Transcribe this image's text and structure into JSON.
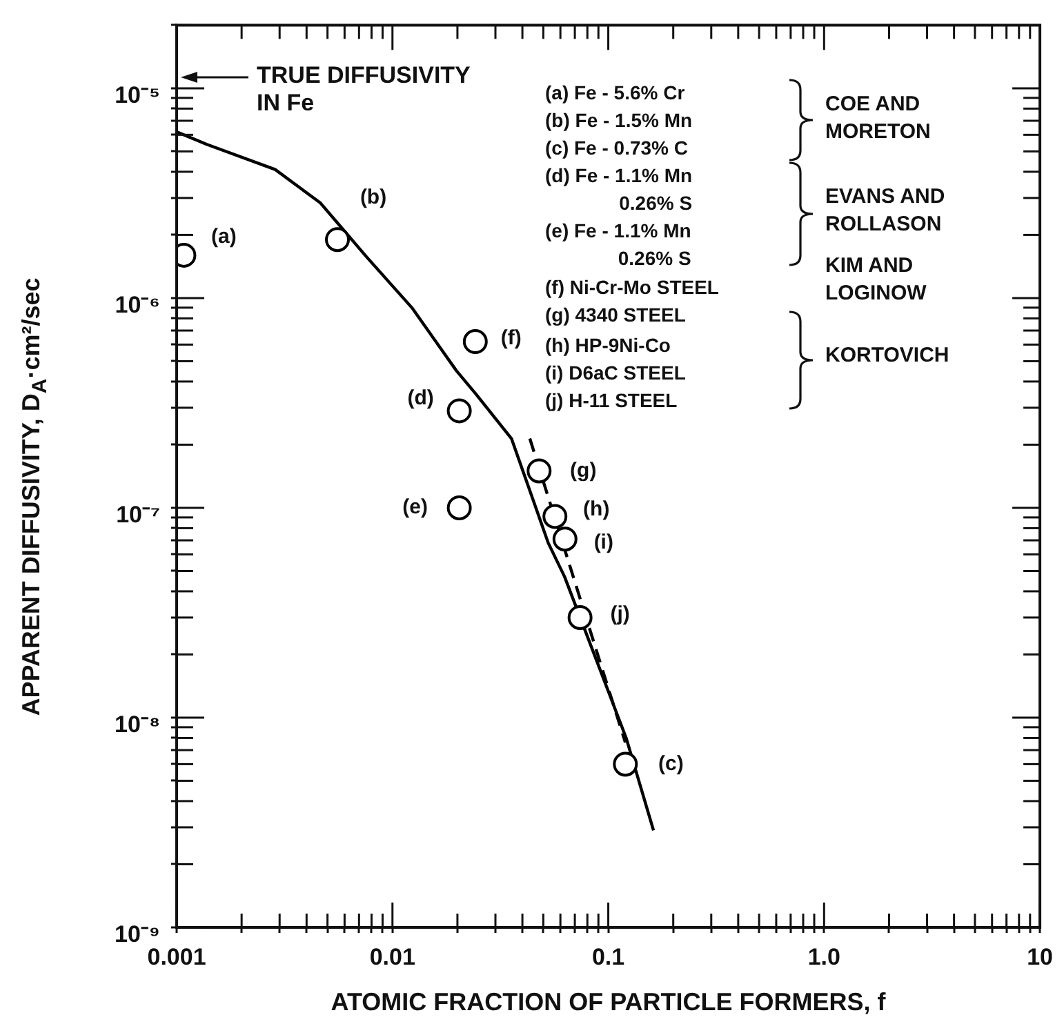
{
  "chart_data": {
    "type": "scatter",
    "xlabel": "ATOMIC FRACTION OF PARTICLE FORMERS, f",
    "ylabel": "APPARENT DIFFUSIVITY, D$_{A}$·cm²/sec",
    "log": "xy",
    "grid": false,
    "legend": false,
    "xlim": [
      0.001,
      10
    ],
    "ylim": [
      1e-09,
      2e-05
    ],
    "xticks": [
      0.001,
      {
        "value": 0.002,
        "label": null
      },
      {
        "value": 0.003,
        "label": null
      },
      {
        "value": 0.004,
        "label": null
      },
      {
        "value": 0.005,
        "label": null
      },
      {
        "value": 0.006,
        "label": null
      },
      {
        "value": 0.007,
        "label": null
      },
      {
        "value": 0.008,
        "label": null
      },
      {
        "value": 0.009,
        "label": null
      },
      0.01,
      {
        "value": 0.02,
        "label": null
      },
      {
        "value": 0.03,
        "label": null
      },
      {
        "value": 0.04,
        "label": null
      },
      {
        "value": 0.05,
        "label": null
      },
      {
        "value": 0.06,
        "label": null
      },
      {
        "value": 0.07,
        "label": null
      },
      {
        "value": 0.08,
        "label": null
      },
      {
        "value": 0.09,
        "label": null
      },
      0.1,
      {
        "value": 0.2,
        "label": null
      },
      {
        "value": 0.3,
        "label": null
      },
      {
        "value": 0.4,
        "label": null
      },
      {
        "value": 0.5,
        "label": null
      },
      {
        "value": 0.6,
        "label": null
      },
      {
        "value": 0.7,
        "label": null
      },
      {
        "value": 0.8,
        "label": null
      },
      {
        "value": 0.9,
        "label": null
      },
      {
        "value": 1,
        "label": "1.0"
      },
      {
        "value": 2,
        "label": null
      },
      {
        "value": 3,
        "label": null
      },
      {
        "value": 4,
        "label": null
      },
      {
        "value": 5,
        "label": null
      },
      {
        "value": 6,
        "label": null
      },
      {
        "value": 7,
        "label": null
      },
      {
        "value": 8,
        "label": null
      },
      {
        "value": 9,
        "label": null
      },
      10
    ],
    "yticks": [
      {
        "value": 1e-09,
        "label": "10⁻⁹"
      },
      {
        "value": 2e-09,
        "label": null
      },
      {
        "value": 3e-09,
        "label": null
      },
      {
        "value": 4e-09,
        "label": null
      },
      {
        "value": 5e-09,
        "label": null
      },
      {
        "value": 6e-09,
        "label": null
      },
      {
        "value": 7e-09,
        "label": null
      },
      {
        "value": 8e-09,
        "label": null
      },
      {
        "value": 9e-09,
        "label": null
      },
      {
        "value": 1e-08,
        "label": "10⁻⁸"
      },
      {
        "value": 2e-08,
        "label": null
      },
      {
        "value": 3e-08,
        "label": null
      },
      {
        "value": 4e-08,
        "label": null
      },
      {
        "value": 5e-08,
        "label": null
      },
      {
        "value": 6e-08,
        "label": null
      },
      {
        "value": 7e-08,
        "label": null
      },
      {
        "value": 8e-08,
        "label": null
      },
      {
        "value": 9e-08,
        "label": null
      },
      {
        "value": 1e-07,
        "label": "10⁻⁷"
      },
      {
        "value": 2e-07,
        "label": null
      },
      {
        "value": 3e-07,
        "label": null
      },
      {
        "value": 4e-07,
        "label": null
      },
      {
        "value": 5e-07,
        "label": null
      },
      {
        "value": 6e-07,
        "label": null
      },
      {
        "value": 7e-07,
        "label": null
      },
      {
        "value": 8e-07,
        "label": null
      },
      {
        "value": 9e-07,
        "label": null
      },
      {
        "value": 1e-06,
        "label": "10⁻⁶"
      },
      {
        "value": 2e-06,
        "label": null
      },
      {
        "value": 3e-06,
        "label": null
      },
      {
        "value": 4e-06,
        "label": null
      },
      {
        "value": 5e-06,
        "label": null
      },
      {
        "value": 6e-06,
        "label": null
      },
      {
        "value": 7e-06,
        "label": null
      },
      {
        "value": 8e-06,
        "label": null
      },
      {
        "value": 9e-06,
        "label": null
      },
      {
        "value": 1e-05,
        "label": "10⁻⁵"
      },
      {
        "value": 2e-05,
        "label": null
      }
    ],
    "series": [
      {
        "marker": "circle",
        "color": "#000000",
        "x": [
          0.00108,
          0.00556,
          0.12,
          0.0204,
          0.0204,
          0.0242,
          0.0478,
          0.0566,
          0.063,
          0.074
        ],
        "values": [
          1.6e-06,
          1.9e-06,
          6e-09,
          2.9e-07,
          1e-07,
          6.2e-07,
          1.5e-07,
          9.1e-08,
          7.1e-08,
          3e-08
        ],
        "value_labels": [
          "(a)",
          "(b)",
          "(c)",
          "(d)",
          "(e)",
          "(f)",
          "(g)",
          "(h)",
          "(i)",
          "(j)"
        ]
      },
      {
        "type": "line",
        "marker": "none",
        "line_style": "solid",
        "color": "#000000",
        "x": [
          0.001,
          0.00138,
          0.00286,
          0.00462,
          0.00759,
          0.0123,
          0.0198,
          0.0243,
          0.0356,
          0.0527,
          0.0627,
          0.121,
          0.162
        ],
        "values": [
          6.2e-06,
          5.4e-06,
          4.1e-06,
          2.85e-06,
          1.57e-06,
          9e-07,
          4.5e-07,
          3.5e-07,
          2.14e-07,
          6.8e-08,
          4.7e-08,
          8e-09,
          2.9e-09
        ]
      },
      {
        "type": "line",
        "marker": "none",
        "line_style": "dashed",
        "color": "#000000",
        "x": [
          0.0433,
          0.12
        ],
        "values": [
          2.14e-07,
          7.6e-09
        ]
      }
    ],
    "annotations": [
      "TRUE DIFFUSIVITY\nIN Fe",
      "(a) Fe - 5.6% Cr",
      "(b) Fe - 1.5% Mn",
      "(c) Fe - 0.73% C",
      "(d) Fe - 1.1% Mn\n0.26% S",
      "(e) Fe - 1.1% Mn\n0.26% S",
      "(f) Ni-Cr-Mo STEEL",
      "(g) 4340 STEEL",
      "(h) HP-9Ni-Co",
      "(i) D6aC STEEL",
      "(j) H-11 STEEL",
      "COE AND\nMORETON",
      "EVANS AND\nROLLASON",
      "KIM AND\nLOGINOW",
      "KORTOVICH"
    ]
  }
}
